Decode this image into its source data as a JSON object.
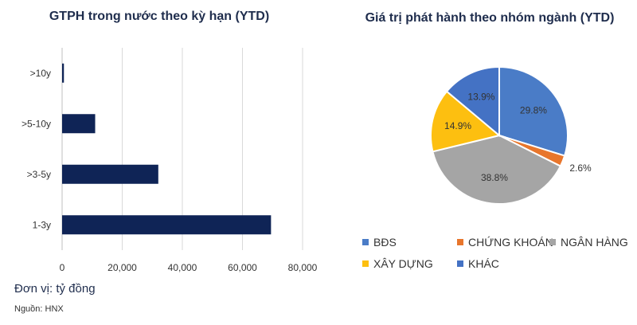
{
  "chart_data": [
    {
      "type": "bar",
      "orientation": "horizontal",
      "title": "GTPH trong nước theo kỳ hạn (YTD)",
      "categories": [
        ">10y",
        ">5-10y",
        ">3-5y",
        "1-3y"
      ],
      "values": [
        600,
        11000,
        32000,
        69500
      ],
      "xlim": [
        0,
        80000
      ],
      "xticks": [
        0,
        20000,
        40000,
        60000,
        80000
      ],
      "xtick_labels": [
        "0",
        "20,000",
        "40,000",
        "60,000",
        "80,000"
      ],
      "grid": true,
      "bar_color": "#0f2456"
    },
    {
      "type": "pie",
      "title": "Giá trị phát hành theo nhóm ngành (YTD)",
      "slices": [
        {
          "name": "BĐS",
          "value": 29.8,
          "label": "29.8%",
          "color": "#4a7cc7"
        },
        {
          "name": "CHỨNG KHOÁN",
          "value": 2.6,
          "label": "2.6%",
          "color": "#e8762c"
        },
        {
          "name": "NGÂN HÀNG",
          "value": 38.8,
          "label": "38.8%",
          "color": "#a5a5a5"
        },
        {
          "name": "XÂY DỰNG",
          "value": 14.9,
          "label": "14.9%",
          "color": "#fdbf10"
        },
        {
          "name": "KHÁC",
          "value": 13.9,
          "label": "13.9%",
          "color": "#4472c4"
        }
      ],
      "legend_position": "bottom"
    }
  ],
  "notes": {
    "unit": "Đơn vị: tỷ đồng",
    "source": "Nguồn: HNX"
  }
}
